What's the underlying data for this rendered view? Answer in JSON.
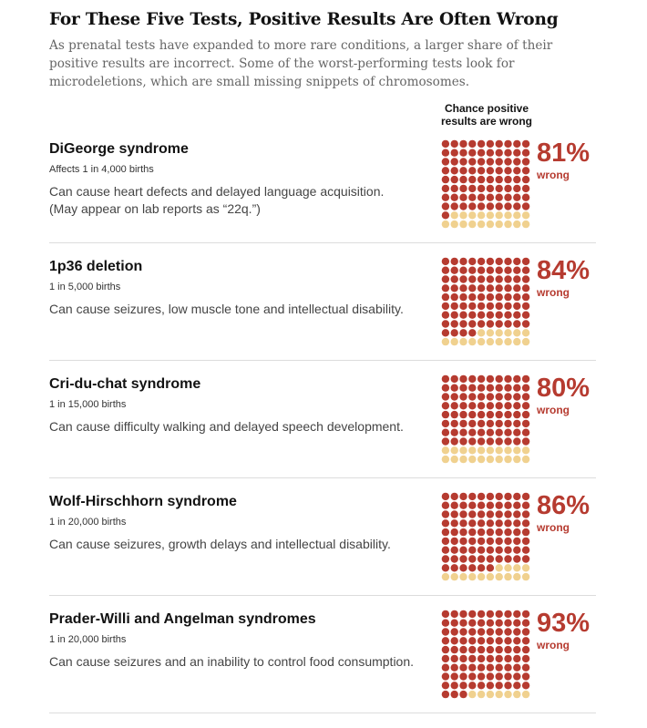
{
  "header": {
    "title": "For These Five Tests, Positive Results Are Often Wrong",
    "subtitle": "As prenatal tests have expanded to more rare conditions, a larger share of their positive results are incorrect. Some of the worst-performing tests look for microdeletions, which are small missing snippets of chromosomes.",
    "column_header": "Chance positive results are wrong"
  },
  "colors": {
    "wrong": "#b63b30",
    "right": "#f0d18f",
    "divider": "#dcdcdc"
  },
  "chart_data": {
    "type": "waffle",
    "title": "For These Five Tests, Positive Results Are Often Wrong",
    "value_label": "Chance positive results are wrong",
    "grid": "10x10 dots, each dot = 1%",
    "legend": [
      {
        "name": "wrong",
        "color": "#b63b30"
      },
      {
        "name": "correct",
        "color": "#f0d18f"
      }
    ],
    "categories": [
      "DiGeorge syndrome",
      "1p36 deletion",
      "Cri-du-chat syndrome",
      "Wolf-Hirschhorn syndrome",
      "Prader-Willi and Angelman syndromes"
    ],
    "values": [
      81,
      84,
      80,
      86,
      93
    ],
    "unit": "%"
  },
  "rows": [
    {
      "name": "DiGeorge syndrome",
      "frequency": "Affects 1 in 4,000 births",
      "description": "Can cause heart defects and delayed language acquisition. (May appear on lab reports as “22q.”)",
      "percent_label": "81%",
      "sub_label": "wrong",
      "value": 81
    },
    {
      "name": "1p36 deletion",
      "frequency": "1 in 5,000 births",
      "description": "Can cause seizures, low muscle tone and intellectual disability.",
      "percent_label": "84%",
      "sub_label": "wrong",
      "value": 84
    },
    {
      "name": "Cri-du-chat syndrome",
      "frequency": "1 in 15,000 births",
      "description": "Can cause difficulty walking and delayed speech development.",
      "percent_label": "80%",
      "sub_label": "wrong",
      "value": 80
    },
    {
      "name": "Wolf-Hirschhorn syndrome",
      "frequency": "1 in 20,000 births",
      "description": "Can cause seizures, growth delays and intellectual disability.",
      "percent_label": "86%",
      "sub_label": "wrong",
      "value": 86
    },
    {
      "name": "Prader-Willi and Angelman syndromes",
      "frequency": "1 in 20,000 births",
      "description": "Can cause seizures and an inability to control food consumption.",
      "percent_label": "93%",
      "sub_label": "wrong",
      "value": 93
    }
  ]
}
